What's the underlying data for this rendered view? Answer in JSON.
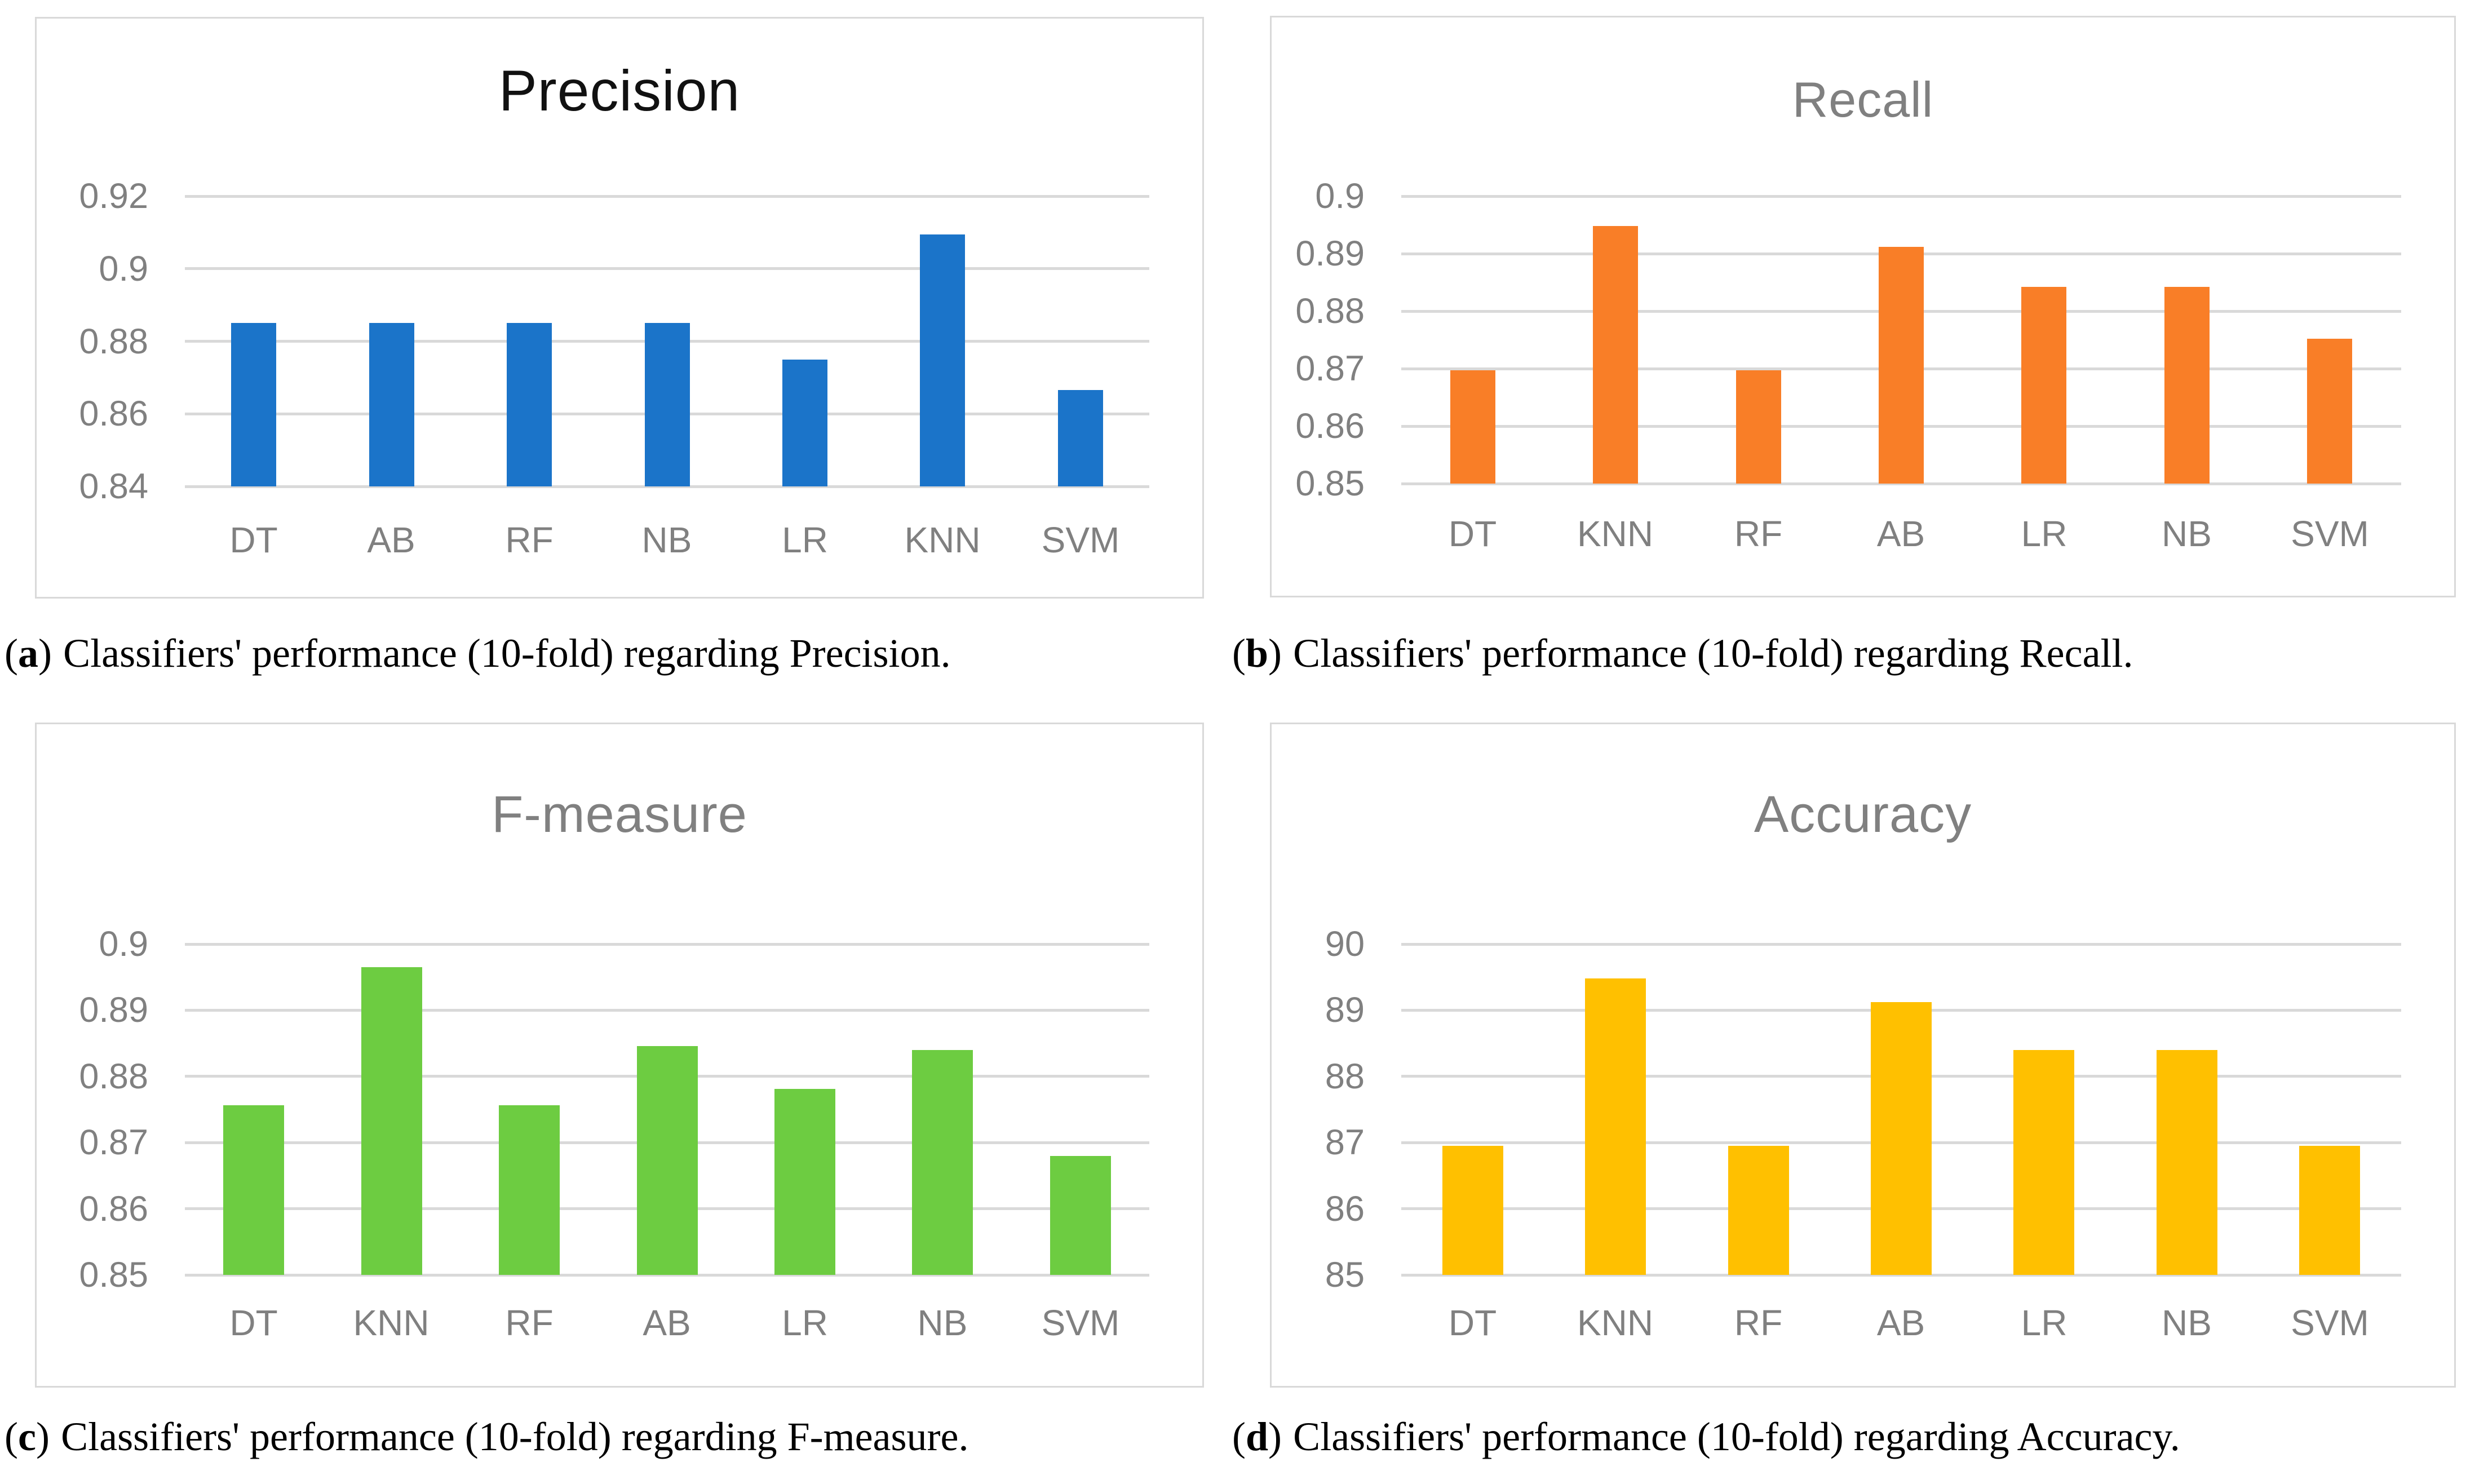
{
  "figure": {
    "background": "#ffffff",
    "panel_border_color": "#d9d9d9",
    "gridline_color": "#d9d9d9",
    "axis_text_color": "#808080",
    "captions": [
      {
        "label": "a",
        "text": "Classifiers' performance (10-fold) regarding Precision."
      },
      {
        "label": "b",
        "text": "Classifiers' performance (10-fold) regarding Recall."
      },
      {
        "label": "c",
        "text": "Classifiers' performance (10-fold) regarding F-measure."
      },
      {
        "label": "d",
        "text": "Classifiers' performance (10-fold) regarding Accuracy."
      }
    ]
  },
  "chart_data": [
    {
      "type": "bar",
      "title": "Precision",
      "title_color": "#111111",
      "bar_color": "#1b74c9",
      "legend": "none",
      "grid": true,
      "categories": [
        "DT",
        "AB",
        "RF",
        "NB",
        "LR",
        "KNN",
        "SVM"
      ],
      "values": [
        0.885,
        0.885,
        0.885,
        0.885,
        0.875,
        0.9095,
        0.8665
      ],
      "ylim": [
        0.84,
        0.92
      ],
      "yticks": [
        {
          "label": "0.92",
          "value": 0.92
        },
        {
          "label": "0.9",
          "value": 0.9
        },
        {
          "label": "0.88",
          "value": 0.88
        },
        {
          "label": "0.86",
          "value": 0.86
        },
        {
          "label": "0.84",
          "value": 0.84
        }
      ]
    },
    {
      "type": "bar",
      "title": "Recall",
      "title_color": "#808080",
      "bar_color": "#f97e27",
      "legend": "none",
      "grid": true,
      "categories": [
        "DT",
        "KNN",
        "RF",
        "AB",
        "LR",
        "NB",
        "SVM"
      ],
      "values": [
        0.8697,
        0.8948,
        0.8697,
        0.8912,
        0.8842,
        0.8842,
        0.8752
      ],
      "ylim": [
        0.85,
        0.9
      ],
      "yticks": [
        {
          "label": "0.9",
          "value": 0.9
        },
        {
          "label": "0.89",
          "value": 0.89
        },
        {
          "label": "0.88",
          "value": 0.88
        },
        {
          "label": "0.87",
          "value": 0.87
        },
        {
          "label": "0.86",
          "value": 0.86
        },
        {
          "label": "0.85",
          "value": 0.85
        }
      ]
    },
    {
      "type": "bar",
      "title": "F-measure",
      "title_color": "#808080",
      "bar_color": "#6dcc41",
      "legend": "none",
      "grid": true,
      "categories": [
        "DT",
        "KNN",
        "RF",
        "AB",
        "LR",
        "NB",
        "SVM"
      ],
      "values": [
        0.8756,
        0.8965,
        0.8756,
        0.8846,
        0.8781,
        0.884,
        0.868
      ],
      "ylim": [
        0.85,
        0.9
      ],
      "yticks": [
        {
          "label": "0.9",
          "value": 0.9
        },
        {
          "label": "0.89",
          "value": 0.89
        },
        {
          "label": "0.88",
          "value": 0.88
        },
        {
          "label": "0.87",
          "value": 0.87
        },
        {
          "label": "0.86",
          "value": 0.86
        },
        {
          "label": "0.85",
          "value": 0.85
        }
      ]
    },
    {
      "type": "bar",
      "title": "Accuracy",
      "title_color": "#808080",
      "bar_color": "#ffc000",
      "legend": "none",
      "grid": true,
      "categories": [
        "DT",
        "KNN",
        "RF",
        "AB",
        "LR",
        "NB",
        "SVM"
      ],
      "values": [
        86.95,
        89.48,
        86.95,
        89.12,
        88.4,
        88.4,
        86.95
      ],
      "ylim": [
        85,
        90
      ],
      "yticks": [
        {
          "label": "90",
          "value": 90
        },
        {
          "label": "89",
          "value": 89
        },
        {
          "label": "88",
          "value": 88
        },
        {
          "label": "87",
          "value": 87
        },
        {
          "label": "86",
          "value": 86
        },
        {
          "label": "85",
          "value": 85
        }
      ]
    }
  ]
}
